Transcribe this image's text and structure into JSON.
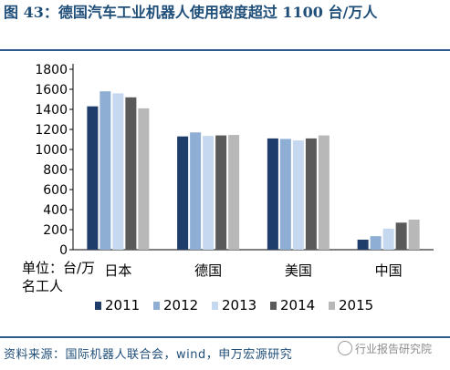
{
  "title": "图 43：德国汽车工业机器人使用密度超过 1100 台/万人",
  "ylabel": "单位：台/万名工人",
  "source": "资料来源：国际机器人联合会，wind，申万宏源研究",
  "watermark": "行业报告研究院",
  "colors": {
    "title": "#1f4e79",
    "series": [
      "#1f3d6b",
      "#8eaed4",
      "#c5d8ef",
      "#5a5a5a",
      "#b8b8b8"
    ]
  },
  "chart_data": {
    "type": "bar",
    "categories": [
      "日本",
      "德国",
      "美国",
      "中国"
    ],
    "ylim": [
      0,
      1800
    ],
    "yticks": [
      0,
      200,
      400,
      600,
      800,
      1000,
      1200,
      1400,
      1600,
      1800
    ],
    "grid": false,
    "legend_position": "bottom",
    "series": [
      {
        "name": "2011",
        "values": [
          1430,
          1130,
          1110,
          100
        ]
      },
      {
        "name": "2012",
        "values": [
          1580,
          1170,
          1105,
          135
        ]
      },
      {
        "name": "2013",
        "values": [
          1560,
          1135,
          1090,
          210
        ]
      },
      {
        "name": "2014",
        "values": [
          1520,
          1140,
          1110,
          270
        ]
      },
      {
        "name": "2015",
        "values": [
          1410,
          1145,
          1140,
          300
        ]
      }
    ]
  }
}
